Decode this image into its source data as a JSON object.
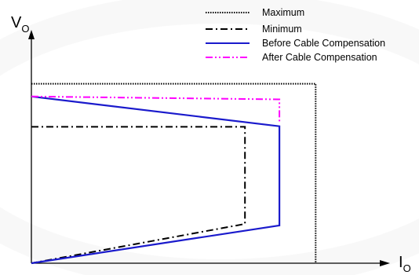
{
  "chart_data": {
    "type": "line",
    "axes": {
      "y": {
        "symbol": "V",
        "subscript": "O"
      },
      "x": {
        "symbol": "I",
        "subscript": "O"
      }
    },
    "legend": {
      "placement": "top-right",
      "entries": [
        {
          "key": "maximum",
          "label": "Maximum",
          "color": "#000000",
          "style": "dotted"
        },
        {
          "key": "minimum",
          "label": "Minimum",
          "color": "#000000",
          "style": "dash-dot"
        },
        {
          "key": "before",
          "label": "Before Cable Compensation",
          "color": "#1a1acc",
          "style": "solid"
        },
        {
          "key": "after",
          "label": "After Cable Compensation",
          "color": "#ff00ff",
          "style": "dash-dot-dot"
        }
      ]
    },
    "series": [
      {
        "key": "maximum",
        "points": [
          [
            0,
            0.964
          ],
          [
            1.005,
            0.964
          ],
          [
            1.005,
            0
          ]
        ]
      },
      {
        "key": "minimum",
        "points": [
          [
            0,
            0.733
          ],
          [
            0.755,
            0.733
          ],
          [
            0.755,
            0.211
          ],
          [
            0,
            0
          ]
        ]
      },
      {
        "key": "before",
        "points": [
          [
            0,
            0.896
          ],
          [
            0.877,
            0.736
          ],
          [
            0.877,
            0.203
          ],
          [
            0,
            0
          ]
        ]
      },
      {
        "key": "after",
        "points": [
          [
            0,
            0.896
          ],
          [
            0.877,
            0.88
          ],
          [
            0.877,
            0.757
          ]
        ]
      }
    ],
    "xlim": [
      0,
      1.24
    ],
    "ylim": [
      0,
      1.22
    ],
    "grid": false
  },
  "page": {
    "background": "#ffffff",
    "axis_color": "#000000"
  }
}
